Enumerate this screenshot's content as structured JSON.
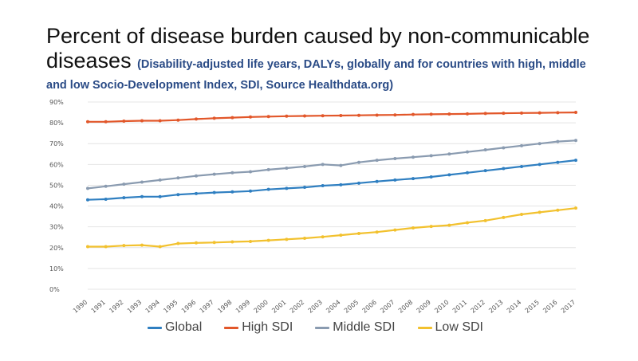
{
  "title": {
    "line1": "Percent of disease burden caused by non-communicable",
    "line2_main": "diseases",
    "line2_sub": "(Disability-adjusted life years, DALYs, globally and for countries with high, middle",
    "line3_sub": "and low Socio-Development Index, SDI, Source Healthdata.org)"
  },
  "chart_data": {
    "type": "line",
    "x": [
      "1990",
      "1991",
      "1992",
      "1993",
      "1994",
      "1995",
      "1996",
      "1997",
      "1998",
      "1999",
      "2000",
      "2001",
      "2002",
      "2003",
      "2004",
      "2005",
      "2006",
      "2007",
      "2008",
      "2009",
      "2010",
      "2011",
      "2012",
      "2013",
      "2014",
      "2015",
      "2016",
      "2017"
    ],
    "y_ticks": [
      "0%",
      "10%",
      "20%",
      "30%",
      "40%",
      "50%",
      "60%",
      "70%",
      "80%",
      "90%"
    ],
    "ylim": [
      0,
      90
    ],
    "grid": true,
    "legend_position": "bottom",
    "series": [
      {
        "name": "Global",
        "color": "#2f7fc1",
        "values": [
          43,
          43.3,
          44,
          44.5,
          44.5,
          45.5,
          46,
          46.5,
          46.8,
          47.2,
          48,
          48.5,
          49,
          49.8,
          50.2,
          51,
          51.8,
          52.5,
          53.2,
          54,
          55,
          56,
          57,
          58,
          59,
          60,
          61,
          62
        ]
      },
      {
        "name": "High SDI",
        "color": "#e2572a",
        "values": [
          80.5,
          80.5,
          80.8,
          81,
          81,
          81.3,
          81.8,
          82.2,
          82.5,
          82.8,
          83,
          83.2,
          83.3,
          83.4,
          83.5,
          83.6,
          83.7,
          83.8,
          84,
          84.1,
          84.2,
          84.3,
          84.5,
          84.6,
          84.7,
          84.8,
          84.9,
          85
        ]
      },
      {
        "name": "Middle SDI",
        "color": "#8a9bb0",
        "values": [
          48.5,
          49.5,
          50.5,
          51.5,
          52.5,
          53.5,
          54.5,
          55.3,
          56,
          56.5,
          57.5,
          58.2,
          59,
          60,
          59.5,
          61,
          62,
          62.8,
          63.5,
          64.2,
          65,
          66,
          67,
          68,
          69,
          70,
          71,
          71.5
        ]
      },
      {
        "name": "Low SDI",
        "color": "#f2c12e",
        "values": [
          20.5,
          20.5,
          21,
          21.2,
          20.5,
          22,
          22.3,
          22.5,
          22.8,
          23,
          23.5,
          24,
          24.5,
          25.2,
          26,
          26.8,
          27.5,
          28.5,
          29.5,
          30.2,
          30.8,
          32,
          33,
          34.5,
          36,
          37,
          38,
          39
        ]
      }
    ]
  }
}
